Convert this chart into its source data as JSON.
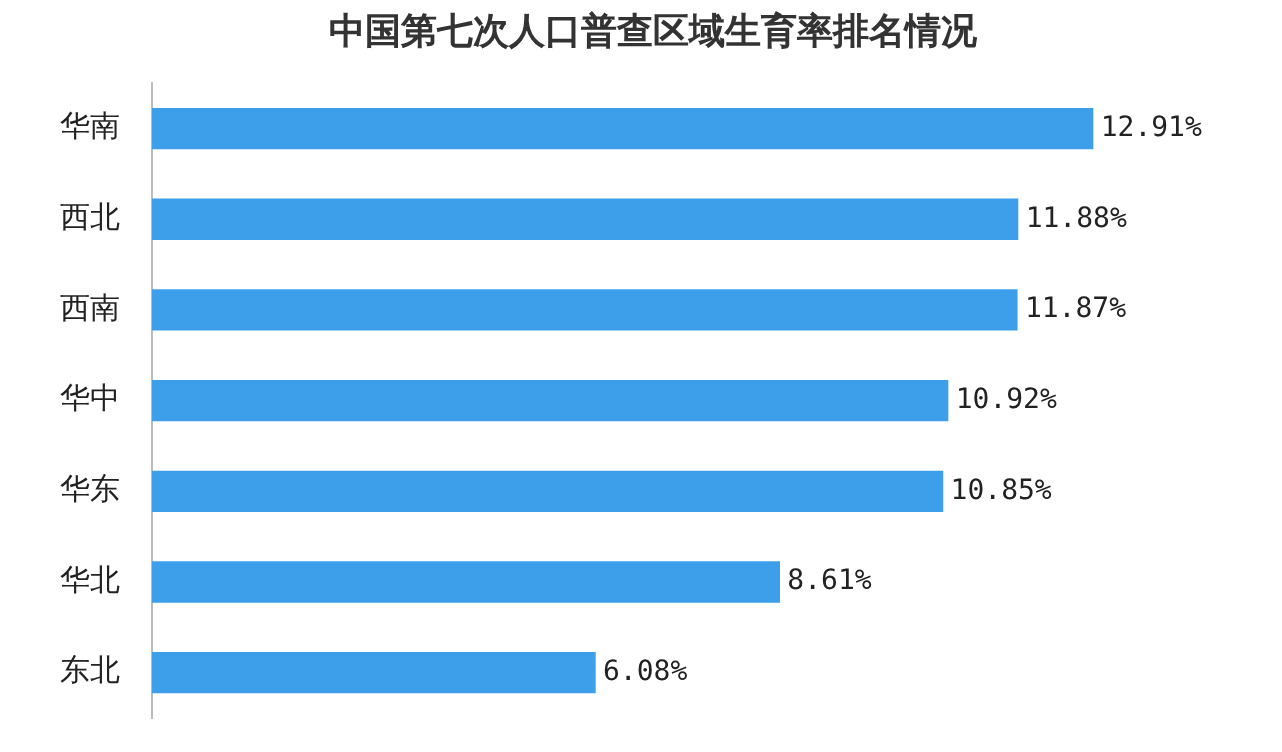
{
  "chart_data": {
    "type": "bar",
    "orientation": "horizontal",
    "title": "中国第七次人口普查区域生育率排名情况",
    "categories": [
      "华南",
      "西北",
      "西南",
      "华中",
      "华东",
      "华北",
      "东北"
    ],
    "values": [
      12.91,
      11.88,
      11.87,
      10.92,
      10.85,
      8.61,
      6.08
    ],
    "value_labels": [
      "12.91%",
      "11.88%",
      "11.87%",
      "10.92%",
      "10.85%",
      "8.61%",
      "6.08%"
    ],
    "color": "#3d9fea",
    "legend": false
  }
}
